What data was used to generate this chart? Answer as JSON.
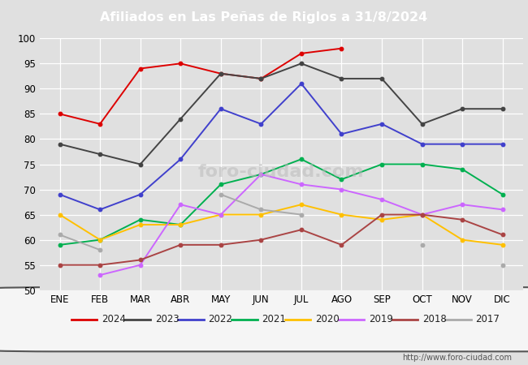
{
  "title": "Afiliados en Las Peñas de Riglos a 31/8/2024",
  "title_color": "#ffffff",
  "title_bg_color": "#5b7fcc",
  "months": [
    "ENE",
    "FEB",
    "MAR",
    "ABR",
    "MAY",
    "JUN",
    "JUL",
    "AGO",
    "SEP",
    "OCT",
    "NOV",
    "DIC"
  ],
  "url": "http://www.foro-ciudad.com",
  "ylim": [
    50,
    100
  ],
  "yticks": [
    50,
    55,
    60,
    65,
    70,
    75,
    80,
    85,
    90,
    95,
    100
  ],
  "series": [
    {
      "label": "2024",
      "color": "#dd0000",
      "values": [
        85,
        83,
        94,
        95,
        93,
        92,
        97,
        98,
        null,
        null,
        null,
        null
      ]
    },
    {
      "label": "2023",
      "color": "#444444",
      "values": [
        79,
        77,
        75,
        84,
        93,
        92,
        95,
        92,
        92,
        83,
        86,
        86
      ]
    },
    {
      "label": "2022",
      "color": "#4040cc",
      "values": [
        69,
        66,
        69,
        76,
        86,
        83,
        91,
        81,
        83,
        79,
        79,
        79
      ]
    },
    {
      "label": "2021",
      "color": "#00b050",
      "values": [
        59,
        60,
        64,
        63,
        71,
        73,
        76,
        72,
        75,
        75,
        74,
        69
      ]
    },
    {
      "label": "2020",
      "color": "#ffc000",
      "values": [
        65,
        60,
        63,
        63,
        65,
        65,
        67,
        65,
        64,
        65,
        60,
        59
      ]
    },
    {
      "label": "2019",
      "color": "#cc66ff",
      "values": [
        null,
        53,
        55,
        67,
        65,
        73,
        71,
        70,
        68,
        65,
        67,
        66
      ]
    },
    {
      "label": "2018",
      "color": "#aa4444",
      "values": [
        55,
        55,
        56,
        59,
        59,
        60,
        62,
        59,
        65,
        65,
        64,
        61
      ]
    },
    {
      "label": "2017",
      "color": "#aaaaaa",
      "values": [
        61,
        58,
        null,
        null,
        69,
        66,
        65,
        null,
        null,
        59,
        null,
        55
      ]
    }
  ],
  "plot_bg_color": "#e0e0e0",
  "fig_bg_color": "#e0e0e0",
  "grid_color": "#ffffff",
  "legend_bg_color": "#f5f5f5",
  "legend_border_color": "#555555"
}
